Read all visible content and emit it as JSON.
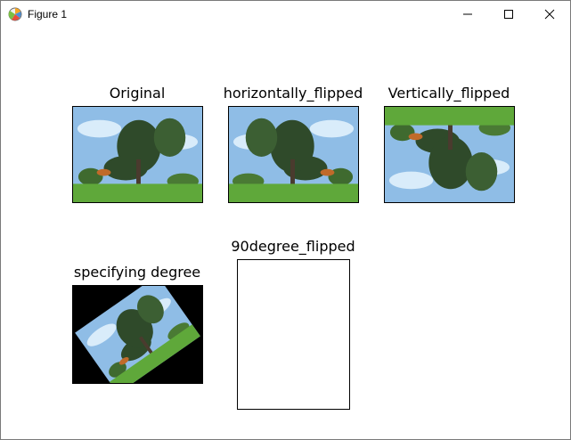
{
  "window": {
    "title": "Figure 1",
    "icon": "matplotlib-figure-icon",
    "controls": [
      "minimize-icon",
      "maximize-icon",
      "close-icon"
    ]
  },
  "subplots": [
    {
      "title": "Original"
    },
    {
      "title": "horizontally_flipped"
    },
    {
      "title": "Vertically_flipped"
    },
    {
      "title": "specifying degree"
    },
    {
      "title": "90degree_flipped"
    }
  ],
  "colors": {
    "sky": "#8fbde6",
    "sky_light": "#d9ecfa",
    "grass": "#5fa83a",
    "foliage": "#2f4a2a",
    "trunk": "#4a3b2e",
    "rotation_fill": "#000000"
  }
}
